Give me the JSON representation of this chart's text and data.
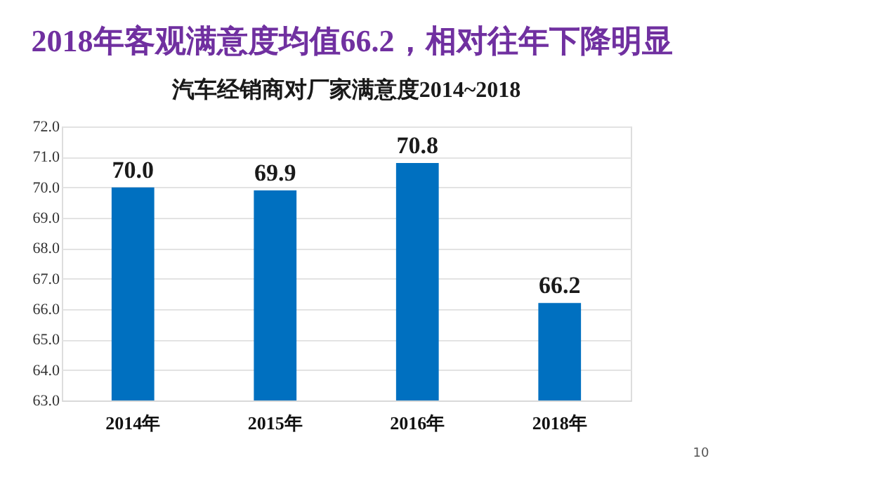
{
  "chart_data": {
    "type": "bar",
    "title": "2018年客观满意度均值66.2，相对往年下降明显",
    "subtitle": "汽车经销商对厂家满意度2014~2018",
    "categories": [
      "2014年",
      "2015年",
      "2016年",
      "2018年"
    ],
    "values": [
      70.0,
      69.9,
      70.8,
      66.2
    ],
    "color": "#0070c0",
    "ylim": [
      63,
      72
    ],
    "yticks": [
      {
        "value": 63,
        "label": "63.0"
      },
      {
        "value": 64,
        "label": "64.0"
      },
      {
        "value": 65,
        "label": "65.0"
      },
      {
        "value": 66,
        "label": "66.0"
      },
      {
        "value": 67,
        "label": "67.0"
      },
      {
        "value": 68,
        "label": "68.0"
      },
      {
        "value": 69,
        "label": "69.0"
      },
      {
        "value": 70,
        "label": "70.0"
      },
      {
        "value": 71,
        "label": "71.0"
      },
      {
        "value": 72,
        "label": "72.0"
      }
    ],
    "value_labels": [
      "70.0",
      "69.9",
      "70.8",
      "66.2"
    ],
    "grid": "y",
    "annotations": [
      "10"
    ]
  }
}
